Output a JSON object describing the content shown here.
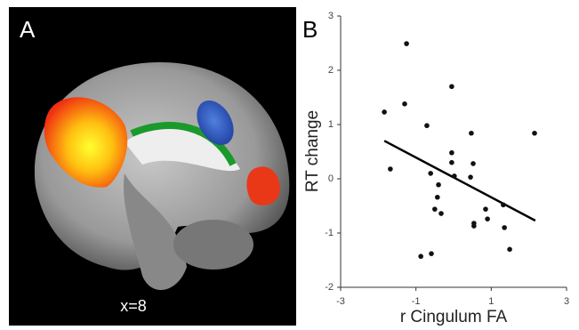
{
  "panel_a": {
    "label": "A",
    "annotation": "x=8"
  },
  "chart_data": {
    "type": "scatter",
    "panel_label": "B",
    "x_label": "r Cingulum FA",
    "y_label": "RT change",
    "x": [
      -1.25,
      -0.05,
      -1.84,
      -1.3,
      -0.71,
      0.47,
      2.15,
      -1.68,
      -0.05,
      -0.05,
      0.52,
      -0.61,
      0.02,
      0.45,
      -0.4,
      -0.43,
      -0.5,
      -0.33,
      0.85,
      0.9,
      1.32,
      0.54,
      0.54,
      1.35,
      1.49,
      -0.59,
      -0.87
    ],
    "values": [
      2.49,
      1.7,
      1.23,
      1.38,
      0.98,
      0.84,
      0.84,
      0.18,
      0.48,
      0.3,
      0.28,
      0.1,
      0.05,
      0.03,
      -0.11,
      -0.34,
      -0.56,
      -0.64,
      -0.56,
      -0.74,
      -0.48,
      -0.82,
      -0.87,
      -0.9,
      -1.3,
      -1.38,
      -1.43
    ],
    "color": "#111111",
    "fit": {
      "x": [
        -1.84,
        2.17
      ],
      "y": [
        0.7,
        -0.77
      ]
    },
    "xlim": [
      -3,
      3
    ],
    "ylim": [
      -2,
      3
    ],
    "xticks": [
      -3,
      -1,
      1,
      3
    ],
    "yticks": [
      -2,
      -1,
      0,
      1,
      2,
      3
    ]
  }
}
